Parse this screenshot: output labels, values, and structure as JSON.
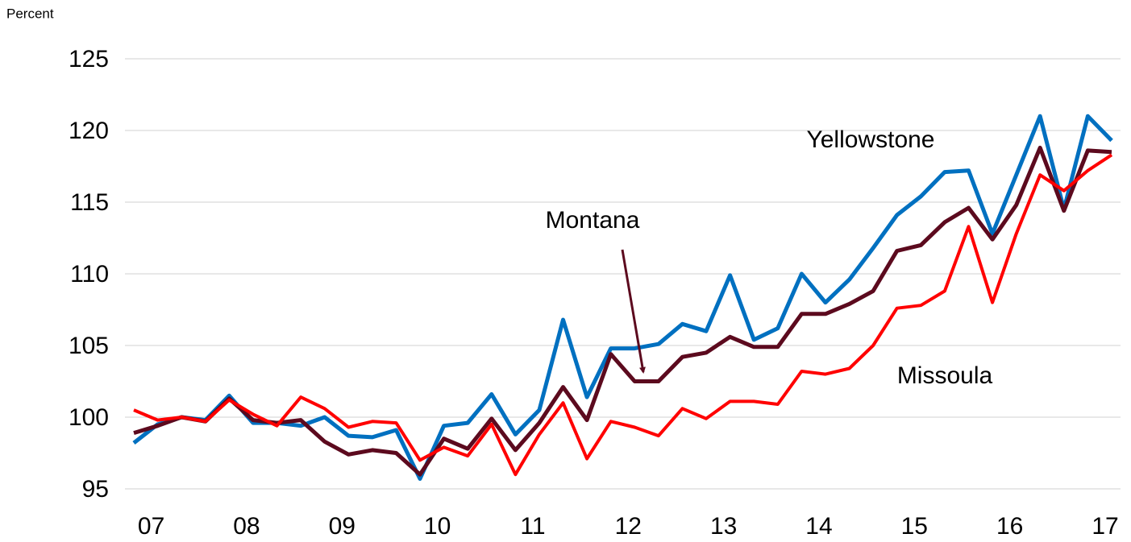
{
  "chart_data": {
    "type": "line",
    "y_axis_label": "Percent",
    "categories": [
      null,
      "07",
      null,
      null,
      null,
      "08",
      null,
      null,
      null,
      "09",
      null,
      null,
      null,
      "10",
      null,
      null,
      null,
      "11",
      null,
      null,
      null,
      "12",
      null,
      null,
      null,
      "13",
      null,
      null,
      null,
      "14",
      null,
      null,
      null,
      "15",
      null,
      null,
      null,
      "16",
      null,
      null,
      null,
      "17"
    ],
    "series": [
      {
        "name": "Yellowstone",
        "color": "#0070c0",
        "values": [
          98.2,
          99.5,
          100,
          99.8,
          101.5,
          99.6,
          99.6,
          99.4,
          100,
          98.7,
          98.6,
          99.1,
          95.7,
          99.4,
          99.6,
          101.6,
          98.8,
          100.5,
          106.8,
          101.4,
          104.8,
          104.8,
          105.1,
          106.5,
          106,
          109.9,
          105.4,
          106.2,
          110,
          108,
          109.6,
          111.8,
          114.1,
          115.4,
          117.1,
          117.2,
          112.8,
          116.9,
          121,
          114.5,
          121,
          119.3
        ]
      },
      {
        "name": "Montana",
        "color": "#5c0a1e",
        "values": [
          98.9,
          99.4,
          100,
          99.7,
          101.3,
          99.8,
          99.6,
          99.8,
          98.3,
          97.4,
          97.7,
          97.5,
          96,
          98.5,
          97.8,
          99.9,
          97.7,
          99.6,
          102.1,
          99.8,
          104.4,
          102.5,
          102.5,
          104.2,
          104.5,
          105.6,
          104.9,
          104.9,
          107.2,
          107.2,
          107.9,
          108.8,
          111.6,
          112,
          113.6,
          114.6,
          112.4,
          114.8,
          118.8,
          114.4,
          118.6,
          118.5
        ]
      },
      {
        "name": "Missoula",
        "color": "#ff0000",
        "values": [
          100.5,
          99.8,
          100,
          99.7,
          101.2,
          100.2,
          99.4,
          101.4,
          100.6,
          99.3,
          99.7,
          99.6,
          97,
          97.9,
          97.3,
          99.5,
          96,
          98.8,
          101,
          97.1,
          99.7,
          99.3,
          98.7,
          100.6,
          99.9,
          101.1,
          101.1,
          100.9,
          103.2,
          103,
          103.4,
          105,
          107.6,
          107.8,
          108.8,
          113.3,
          108,
          112.8,
          116.9,
          115.8,
          117.2,
          118.3
        ]
      }
    ],
    "ylim": [
      95,
      125
    ],
    "yticks": [
      95,
      100,
      105,
      110,
      115,
      120,
      125
    ],
    "grid": true
  }
}
